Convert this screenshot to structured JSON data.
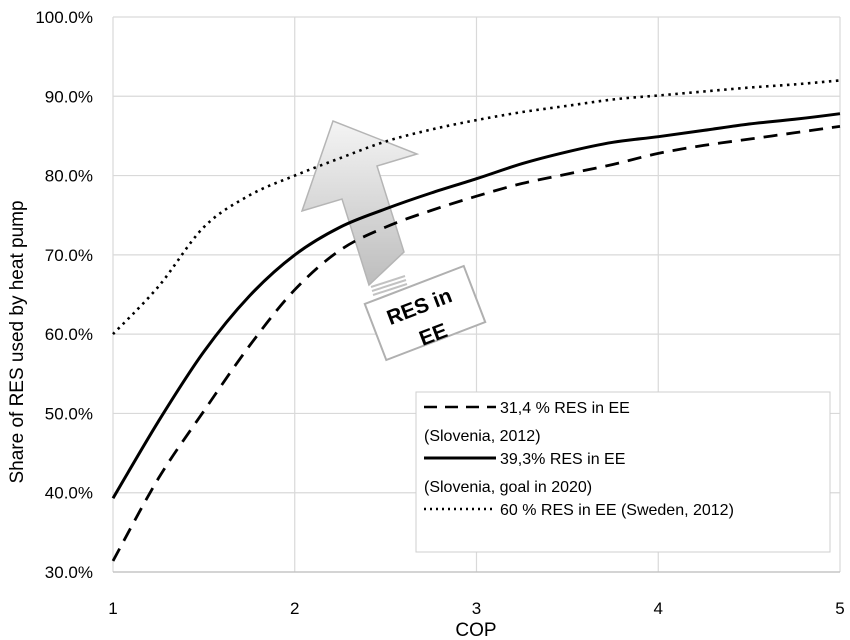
{
  "chart_data": {
    "type": "line",
    "xlabel": "COP",
    "ylabel": "Share of RES used by heat pump",
    "xlim": [
      1,
      5
    ],
    "ylim": [
      0.3,
      1.0
    ],
    "x_ticks": [
      1,
      2,
      3,
      4,
      5
    ],
    "y_ticks": [
      0.3,
      0.4,
      0.5,
      0.6,
      0.7,
      0.8,
      0.9,
      1.0
    ],
    "x_tick_labels": [
      "1",
      "2",
      "3",
      "4",
      "5"
    ],
    "y_tick_labels": [
      "30.0%",
      "40.0%",
      "50.0%",
      "60.0%",
      "70.0%",
      "80.0%",
      "90.0%",
      "100.0%"
    ],
    "grid": true,
    "x": [
      1,
      1.25,
      1.5,
      1.75,
      2,
      2.25,
      2.5,
      2.75,
      3,
      3.25,
      3.5,
      3.75,
      4,
      4.25,
      4.5,
      4.75,
      5
    ],
    "series": [
      {
        "name": "31,4 % RES in EE (Slovenia, 2012)",
        "style": "dashed",
        "color": "#000000",
        "values": [
          0.314,
          0.418,
          0.503,
          0.585,
          0.656,
          0.706,
          0.735,
          0.756,
          0.774,
          0.79,
          0.802,
          0.814,
          0.828,
          0.838,
          0.846,
          0.854,
          0.862
        ]
      },
      {
        "name": "39,3% RES in EE (Slovenia, goal in 2020)",
        "style": "solid",
        "color": "#000000",
        "values": [
          0.393,
          0.49,
          0.578,
          0.648,
          0.7,
          0.735,
          0.758,
          0.778,
          0.796,
          0.815,
          0.83,
          0.842,
          0.849,
          0.857,
          0.865,
          0.871,
          0.878
        ]
      },
      {
        "name": "60 % RES in EE (Sweden, 2012)",
        "style": "dotted",
        "color": "#000000",
        "values": [
          0.6,
          0.66,
          0.735,
          0.775,
          0.8,
          0.822,
          0.843,
          0.858,
          0.87,
          0.88,
          0.888,
          0.896,
          0.901,
          0.906,
          0.911,
          0.915,
          0.92
        ]
      }
    ],
    "legend": {
      "placement": "bottom-right",
      "lines": [
        {
          "text": "31,4 % RES in EE",
          "style": "dashed"
        },
        {
          "text": "(Slovenia, 2012)",
          "style": "none"
        },
        {
          "text": "39,3% RES in EE",
          "style": "solid"
        },
        {
          "text": "(Slovenia, goal in 2020)",
          "style": "none"
        },
        {
          "text": "60 % RES in EE (Sweden, 2012)",
          "style": "dotted"
        }
      ]
    },
    "annotation": {
      "line1": "RES in",
      "line2": "EE"
    }
  }
}
